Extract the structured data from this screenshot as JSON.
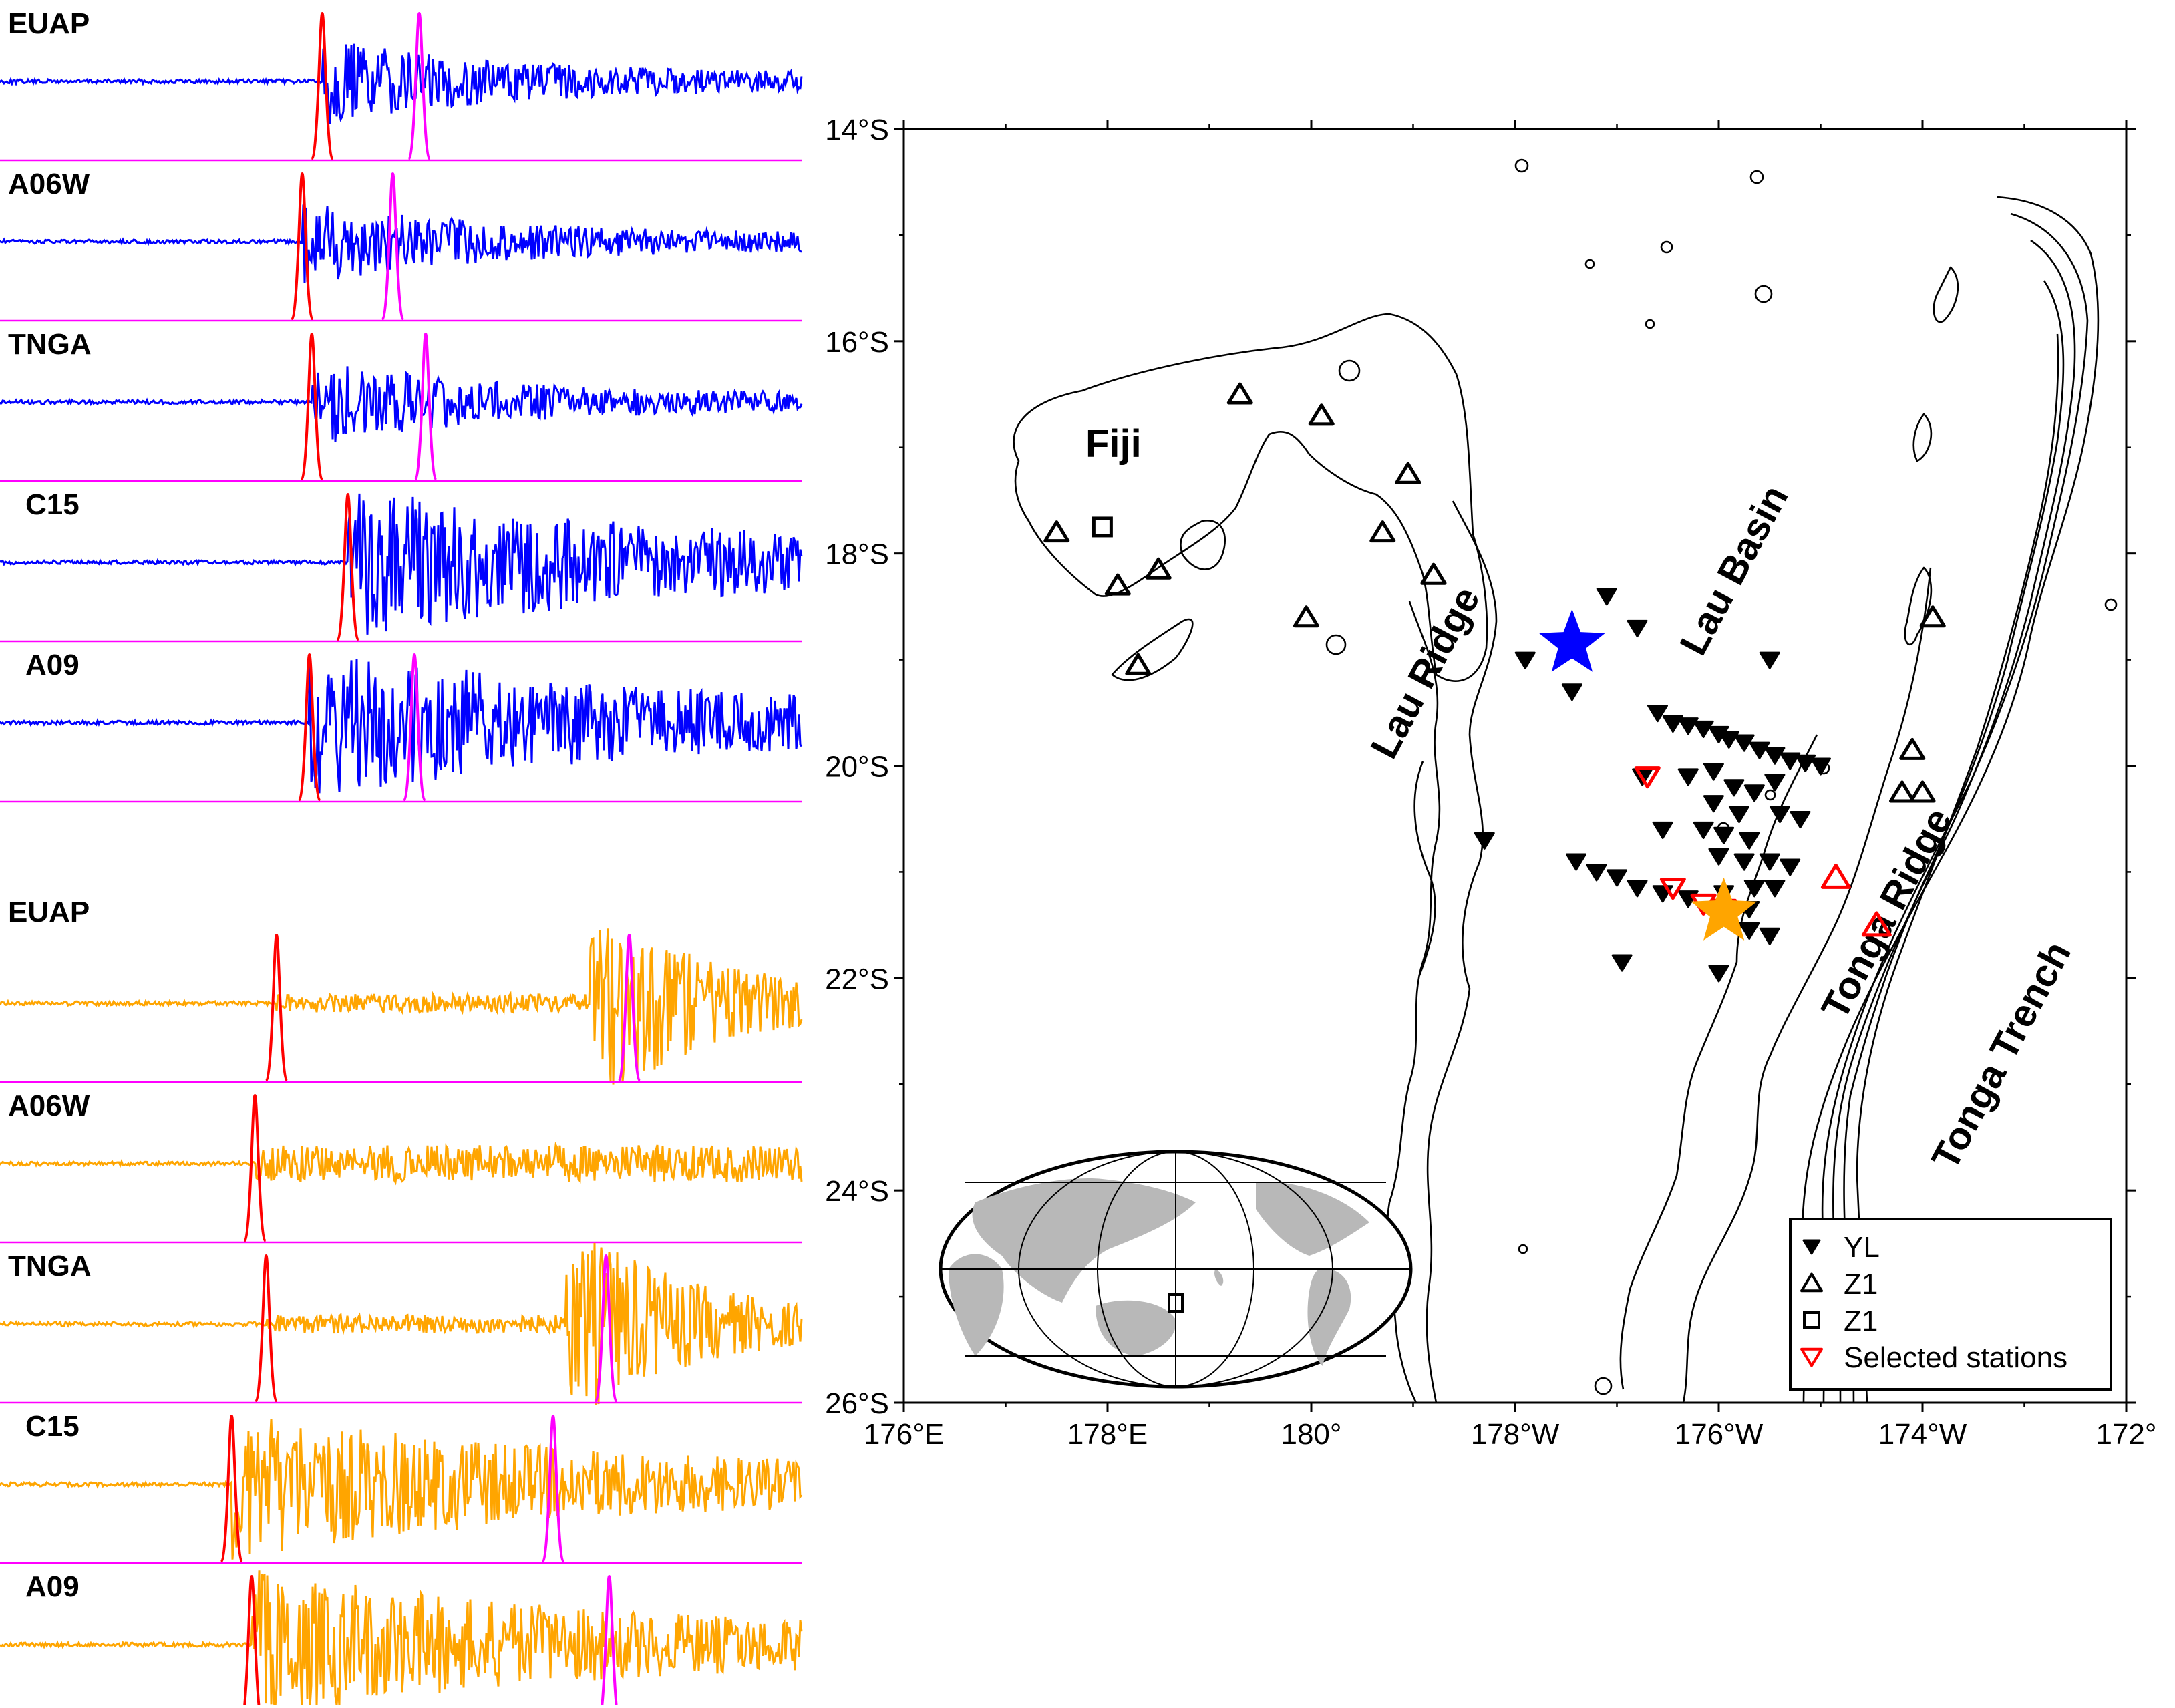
{
  "waveform_panels": [
    {
      "trace_color": "#0000ff",
      "stations": [
        "EUAP",
        "A06W",
        "TNGA",
        "C15",
        "A09"
      ],
      "p_pick_fraction": [
        0.402,
        0.377,
        0.389,
        0.434,
        0.386
      ],
      "s_pick_fraction": [
        0.523,
        0.49,
        0.531,
        0.0,
        0.517
      ],
      "amplitude_profile": [
        "growing",
        "growing",
        "growing",
        "strong",
        "strong"
      ]
    },
    {
      "trace_color": "#ffa500",
      "stations": [
        "EUAP",
        "A06W",
        "TNGA",
        "C15",
        "A09"
      ],
      "p_pick_fraction": [
        0.345,
        0.318,
        0.332,
        0.289,
        0.314
      ],
      "s_pick_fraction": [
        0.785,
        0.0,
        0.756,
        0.69,
        0.76
      ],
      "amplitude_profile": [
        "late",
        "flat",
        "late",
        "strong",
        "strong"
      ]
    }
  ],
  "pick_colors": {
    "p": "#ff0000",
    "s": "#ff00ff",
    "baseline": "#ff00ff"
  },
  "map": {
    "lon_range": [
      176,
      188
    ],
    "lat_range": [
      -26,
      -14
    ],
    "lat_ticks": [
      {
        "value": -14,
        "label": "14°S"
      },
      {
        "value": -16,
        "label": "16°S"
      },
      {
        "value": -18,
        "label": "18°S"
      },
      {
        "value": -20,
        "label": "20°S"
      },
      {
        "value": -22,
        "label": "22°S"
      },
      {
        "value": -24,
        "label": "24°S"
      },
      {
        "value": -26,
        "label": "26°S"
      }
    ],
    "lon_ticks": [
      {
        "value": 176,
        "label": "176°E"
      },
      {
        "value": 178,
        "label": "178°E"
      },
      {
        "value": 180,
        "label": "180°"
      },
      {
        "value": 182,
        "label": "178°W"
      },
      {
        "value": 184,
        "label": "176°W"
      },
      {
        "value": 186,
        "label": "174°W"
      },
      {
        "value": 188,
        "label": "172°"
      }
    ],
    "region_labels": {
      "fiji": "Fiji",
      "lau_ridge": "Lau Ridge",
      "lau_basin": "Lau Basin",
      "tonga_ridge": "Tonga Ridge",
      "tonga_trench": "Tonga Trench"
    },
    "events": [
      {
        "lon": 182.56,
        "lat": -18.85,
        "color": "#0000ff"
      },
      {
        "lon": 184.05,
        "lat": -21.38,
        "color": "#ffa500"
      }
    ],
    "yl_stations": [
      [
        182.9,
        -18.4
      ],
      [
        182.1,
        -19.0
      ],
      [
        182.56,
        -19.3
      ],
      [
        183.2,
        -18.7
      ],
      [
        184.5,
        -19.0
      ],
      [
        183.4,
        -19.5
      ],
      [
        183.55,
        -19.6
      ],
      [
        183.7,
        -19.62
      ],
      [
        183.85,
        -19.65
      ],
      [
        184.0,
        -19.7
      ],
      [
        184.1,
        -19.75
      ],
      [
        184.25,
        -19.78
      ],
      [
        184.4,
        -19.85
      ],
      [
        184.55,
        -19.9
      ],
      [
        184.7,
        -19.95
      ],
      [
        184.85,
        -19.97
      ],
      [
        185.0,
        -20.0
      ],
      [
        183.25,
        -20.1
      ],
      [
        183.7,
        -20.1
      ],
      [
        183.95,
        -20.05
      ],
      [
        184.15,
        -20.2
      ],
      [
        184.35,
        -20.25
      ],
      [
        184.55,
        -20.15
      ],
      [
        183.95,
        -20.35
      ],
      [
        184.2,
        -20.45
      ],
      [
        184.6,
        -20.45
      ],
      [
        184.8,
        -20.5
      ],
      [
        183.85,
        -20.6
      ],
      [
        184.05,
        -20.65
      ],
      [
        184.3,
        -20.7
      ],
      [
        183.45,
        -20.6
      ],
      [
        184.0,
        -20.85
      ],
      [
        184.25,
        -20.9
      ],
      [
        184.5,
        -20.9
      ],
      [
        184.7,
        -20.95
      ],
      [
        182.6,
        -20.9
      ],
      [
        182.8,
        -21.0
      ],
      [
        183.0,
        -21.05
      ],
      [
        183.2,
        -21.15
      ],
      [
        183.45,
        -21.2
      ],
      [
        183.7,
        -21.25
      ],
      [
        184.05,
        -21.2
      ],
      [
        184.35,
        -21.15
      ],
      [
        184.55,
        -21.15
      ],
      [
        184.3,
        -21.55
      ],
      [
        184.5,
        -21.6
      ],
      [
        183.05,
        -21.85
      ],
      [
        184.0,
        -21.95
      ],
      [
        181.7,
        -20.7
      ],
      [
        184.3,
        -21.35
      ]
    ],
    "z1_triangle_stations": [
      [
        177.5,
        -17.8
      ],
      [
        178.1,
        -18.3
      ],
      [
        178.5,
        -18.15
      ],
      [
        178.3,
        -19.05
      ],
      [
        179.3,
        -16.5
      ],
      [
        180.1,
        -16.7
      ],
      [
        179.95,
        -18.6
      ],
      [
        180.95,
        -17.25
      ],
      [
        180.7,
        -17.8
      ],
      [
        181.2,
        -18.2
      ],
      [
        185.9,
        -19.85
      ],
      [
        186.0,
        -20.25
      ],
      [
        185.8,
        -20.25
      ],
      [
        186.1,
        -18.6
      ]
    ],
    "z1_square_stations": [
      [
        177.95,
        -17.75
      ]
    ],
    "selected_stations": {
      "down": [
        [
          183.3,
          -20.1
        ],
        [
          183.55,
          -21.15
        ],
        [
          183.85,
          -21.3
        ],
        [
          184.05,
          -21.35
        ]
      ],
      "up": [
        [
          185.15,
          -21.05
        ],
        [
          185.55,
          -21.5
        ]
      ]
    },
    "legend": {
      "items": [
        {
          "symbol": "triangle-down",
          "label": "YL",
          "color": "#000000"
        },
        {
          "symbol": "triangle-up",
          "label": "Z1",
          "color": "#000000"
        },
        {
          "symbol": "square",
          "label": "Z1",
          "color": "#000000"
        },
        {
          "symbol": "triangle-down",
          "label": "Selected stations",
          "color": "#ff0000"
        }
      ]
    }
  }
}
